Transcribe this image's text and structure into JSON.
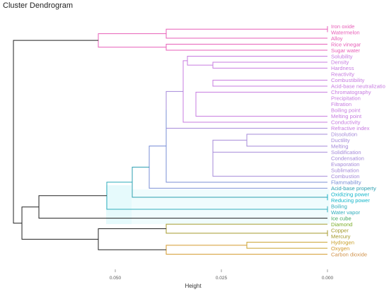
{
  "chart_data": {
    "type": "dendrogram",
    "title": "Cluster Dendrogram",
    "xlabel": "Height",
    "xlim": [
      0.075,
      0
    ],
    "xticks": [
      {
        "value": 0.05,
        "label": "0.050"
      },
      {
        "value": 0.025,
        "label": "0.025"
      },
      {
        "value": 0.0,
        "label": "0.000"
      }
    ],
    "leaves": [
      {
        "label": "Iron oxide",
        "color": "#e75fb8"
      },
      {
        "label": "Watermelon",
        "color": "#e75fb8"
      },
      {
        "label": "Alloy",
        "color": "#e75fb8"
      },
      {
        "label": "Rice vinegar",
        "color": "#e75fb8"
      },
      {
        "label": "Sugar water",
        "color": "#e75fb8"
      },
      {
        "label": "Solubility",
        "color": "#c77ce0"
      },
      {
        "label": "Density",
        "color": "#c77ce0"
      },
      {
        "label": "Hardness",
        "color": "#c77ce0"
      },
      {
        "label": "Reactivity",
        "color": "#c77ce0"
      },
      {
        "label": "Combustibility",
        "color": "#c77ce0"
      },
      {
        "label": "Acid-base neutralizatio",
        "color": "#c77ce0"
      },
      {
        "label": "Chromatography",
        "color": "#c77ce0"
      },
      {
        "label": "Precipitation",
        "color": "#c77ce0"
      },
      {
        "label": "Filtration",
        "color": "#c77ce0"
      },
      {
        "label": "Boiling point",
        "color": "#c77ce0"
      },
      {
        "label": "Melting point",
        "color": "#c77ce0"
      },
      {
        "label": "Conductivity",
        "color": "#c77ce0"
      },
      {
        "label": "Refractive index",
        "color": "#c77ce0"
      },
      {
        "label": "Dissolution",
        "color": "#a58ad9"
      },
      {
        "label": "Ductility",
        "color": "#a58ad9"
      },
      {
        "label": "Melting",
        "color": "#a58ad9"
      },
      {
        "label": "Solidification",
        "color": "#a58ad9"
      },
      {
        "label": "Condensation",
        "color": "#a58ad9"
      },
      {
        "label": "Evaporation",
        "color": "#a58ad9"
      },
      {
        "label": "Sublimation",
        "color": "#a58ad9"
      },
      {
        "label": "Combustion",
        "color": "#a58ad9"
      },
      {
        "label": "Flammability",
        "color": "#7a8fd6"
      },
      {
        "label": "Acid-base property",
        "color": "#2b9fb0"
      },
      {
        "label": "Oxidizing power",
        "color": "#12b5c9"
      },
      {
        "label": "Reducing power",
        "color": "#12b5c9"
      },
      {
        "label": "Boiling",
        "color": "#33aebd"
      },
      {
        "label": "Water vapor",
        "color": "#33aebd"
      },
      {
        "label": "Ice cube",
        "color": "#3fa65f"
      },
      {
        "label": "Diamond",
        "color": "#7cae2a"
      },
      {
        "label": "Copper",
        "color": "#a59a2e"
      },
      {
        "label": "Mercury",
        "color": "#a59a2e"
      },
      {
        "label": "Hydrogen",
        "color": "#c9a02c"
      },
      {
        "label": "Oxygen",
        "color": "#d39a2d"
      },
      {
        "label": "Carbon dioxide",
        "color": "#d1944e"
      }
    ],
    "links": [
      {
        "a": 0,
        "b": 1,
        "height": 0.0,
        "color": "#e75fb8"
      },
      {
        "a": 0,
        "b": 2,
        "height": 0.038,
        "color": "#e75fb8"
      },
      {
        "a": 3,
        "b": 4,
        "height": 0.038,
        "color": "#e75fb8"
      },
      {
        "a": 0,
        "b": 3,
        "height": 0.054,
        "color": "#e75fb8"
      },
      {
        "a": 6,
        "b": 7,
        "height": 0.027,
        "color": "#c77ce0"
      },
      {
        "a": 9,
        "b": 10,
        "height": 0.027,
        "color": "#c77ce0"
      },
      {
        "a": 11,
        "b": 15,
        "height": 0.031,
        "color": "#c77ce0"
      },
      {
        "a": 5,
        "b": 6,
        "height": 0.033,
        "color": "#c77ce0"
      },
      {
        "a": 5,
        "b": 16,
        "height": 0.034,
        "color": "#c77ce0"
      },
      {
        "a": 18,
        "b": 20,
        "height": 0.019,
        "color": "#a58ad9"
      },
      {
        "a": 21,
        "b": 25,
        "height": 0.027,
        "color": "#a58ad9"
      },
      {
        "a": 18,
        "b": 21,
        "height": 0.027,
        "color": "#a58ad9"
      },
      {
        "a": 5,
        "b": 17,
        "height": 0.038,
        "color": "#a58ad9"
      },
      {
        "a": 5,
        "b": 26,
        "height": 0.038,
        "color": "#7a8fd6"
      },
      {
        "a": 5,
        "b": 27,
        "height": 0.042,
        "color": "#7a8fd6"
      },
      {
        "a": 28,
        "b": 29,
        "height": 0.0,
        "color": "#12b5c9"
      },
      {
        "a": 5,
        "b": 28,
        "height": 0.046,
        "color": "#2b9fb0"
      },
      {
        "a": 30,
        "b": 31,
        "height": 0.0,
        "color": "#33aebd"
      },
      {
        "a": 5,
        "b": 30,
        "height": 0.052,
        "color": "#33aebd"
      },
      {
        "a": 5,
        "b": 32,
        "height": 0.068,
        "color": "#222222"
      },
      {
        "a": 34,
        "b": 35,
        "height": 0.0,
        "color": "#a59a2e"
      },
      {
        "a": 33,
        "b": 34,
        "height": 0.038,
        "color": "#a59a2e"
      },
      {
        "a": 36,
        "b": 37,
        "height": 0.019,
        "color": "#c9a02c"
      },
      {
        "a": 36,
        "b": 38,
        "height": 0.038,
        "color": "#d39a2d"
      },
      {
        "a": 33,
        "b": 36,
        "height": 0.054,
        "color": "#222222"
      },
      {
        "a": 5,
        "b": 33,
        "height": 0.072,
        "color": "#222222"
      },
      {
        "a": 0,
        "b": 5,
        "height": 0.074,
        "color": "#222222"
      }
    ]
  }
}
